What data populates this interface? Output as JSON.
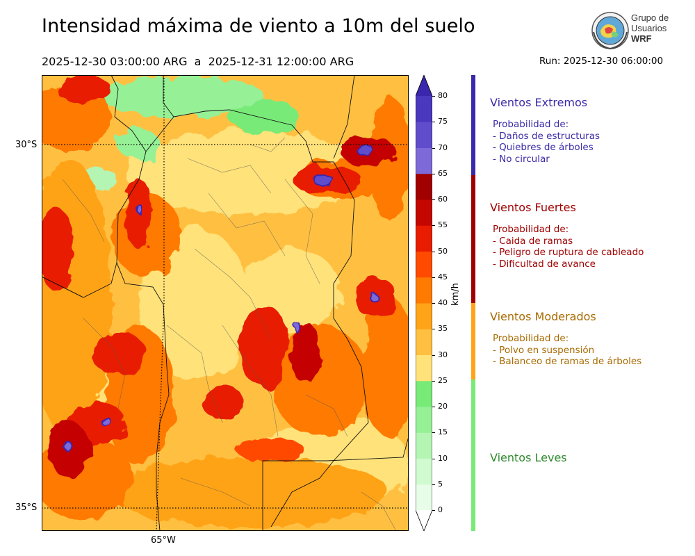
{
  "title": "Intensidad máxima de viento a 10m del suelo",
  "period": "2025-12-30 03:00:00 ARG  a  2025-12-31 12:00:00 ARG",
  "run": "Run: 2025-12-30 06:00:00",
  "logo": {
    "line1": "Grupo de",
    "line2": "Usuarios",
    "line3": "WRF"
  },
  "map": {
    "lat_labels": [
      "30°S",
      "35°S"
    ],
    "lon_labels": [
      "65°W"
    ]
  },
  "colorbar": {
    "unit": "km/h",
    "ticks": [
      "0",
      "5",
      "10",
      "15",
      "20",
      "25",
      "30",
      "35",
      "40",
      "45",
      "50",
      "55",
      "60",
      "65",
      "70",
      "75",
      "80"
    ],
    "colors": [
      "#e8fde8",
      "#d0fad0",
      "#b4f5b4",
      "#96f096",
      "#78ea78",
      "#ffe27a",
      "#ffc042",
      "#ffa318",
      "#ff7a00",
      "#ff4a00",
      "#e81c00",
      "#c40600",
      "#a00000",
      "#7d6ad8",
      "#5f4dcc",
      "#4a38be",
      "#3a27ae"
    ]
  },
  "categories": [
    {
      "title": "Vientos Extremos",
      "color": "#3a2aa8",
      "lines": [
        "Probabilidad de:",
        "- Daños de estructuras",
        "- Quiebres de árboles",
        "- No circular"
      ]
    },
    {
      "title": "Vientos Fuertes",
      "color": "#a00000",
      "lines": [
        "Probabilidad de:",
        "- Caida de ramas",
        "- Peligro de ruptura de cableado",
        "- Dificultad de avance"
      ]
    },
    {
      "title": "Vientos Moderados",
      "color": "#a86a00",
      "lines": [
        "Probabilidad de:",
        "- Polvo en suspensión",
        "- Balanceo de ramas de árboles"
      ]
    },
    {
      "title": "Vientos Leves",
      "color": "#2e8b2e",
      "lines": []
    }
  ]
}
